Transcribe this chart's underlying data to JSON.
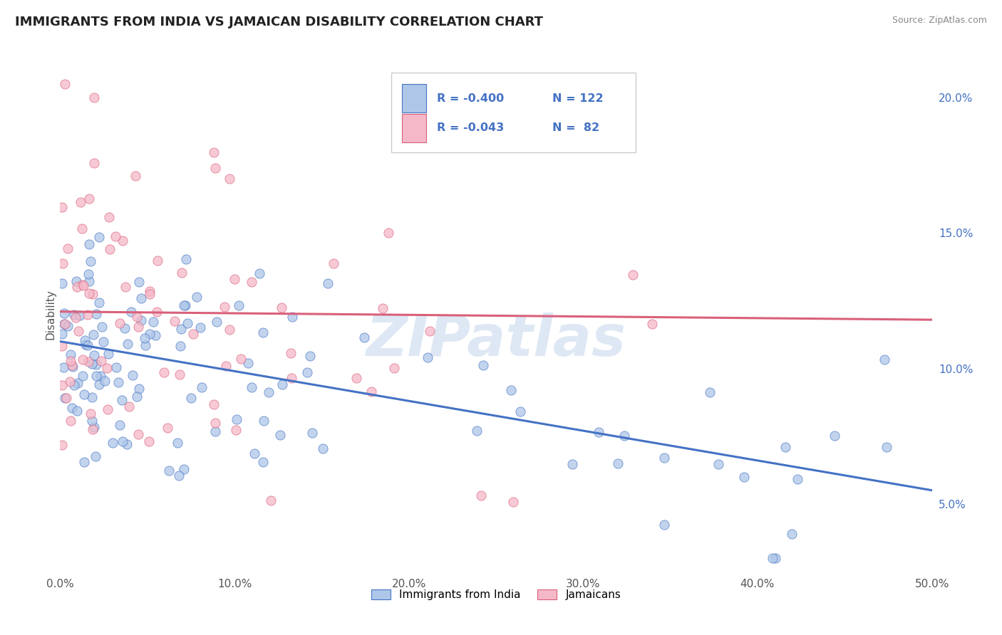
{
  "title": "IMMIGRANTS FROM INDIA VS JAMAICAN DISABILITY CORRELATION CHART",
  "source_text": "Source: ZipAtlas.com",
  "ylabel": "Disability",
  "xlim": [
    0.0,
    0.5
  ],
  "ylim": [
    0.025,
    0.215
  ],
  "xticks": [
    0.0,
    0.1,
    0.2,
    0.3,
    0.4,
    0.5
  ],
  "xticklabels": [
    "0.0%",
    "10.0%",
    "20.0%",
    "30.0%",
    "40.0%",
    "50.0%"
  ],
  "yticks_right": [
    0.05,
    0.1,
    0.15,
    0.2
  ],
  "yticklabels_right": [
    "5.0%",
    "10.0%",
    "15.0%",
    "20.0%"
  ],
  "blue_fill": "#aec6e8",
  "blue_edge": "#4472c4",
  "pink_fill": "#f5b8c8",
  "pink_edge": "#d9607a",
  "blue_line_color": "#4472c4",
  "pink_line_color": "#d9607a",
  "legend_blue_label": "Immigrants from India",
  "legend_pink_label": "Jamaicans",
  "legend_r_blue": "R = -0.400",
  "legend_n_blue": "N = 122",
  "legend_r_pink": "R = -0.043",
  "legend_n_pink": "N =  82",
  "title_color": "#222222",
  "title_fontsize": 13,
  "legend_text_color": "#4472c4",
  "background_color": "#ffffff",
  "grid_color": "#cccccc",
  "watermark_text": "ZIPatlas",
  "blue_trend_x": [
    0.0,
    0.5
  ],
  "blue_trend_y": [
    0.11,
    0.055
  ],
  "pink_trend_x": [
    0.0,
    0.5
  ],
  "pink_trend_y": [
    0.121,
    0.118
  ],
  "seed": 7
}
